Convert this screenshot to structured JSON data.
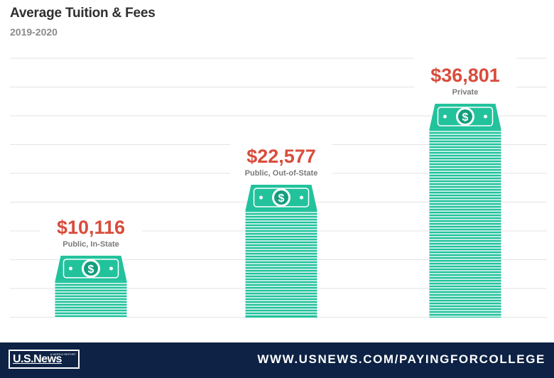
{
  "header": {
    "title": "Average Tuition & Fees",
    "subtitle": "2019-2020"
  },
  "chart_data": {
    "type": "bar",
    "title": "Average Tuition & Fees",
    "subtitle": "2019-2020",
    "categories": [
      "Public, In-State",
      "Public, Out-of-State",
      "Private"
    ],
    "values": [
      10116,
      22577,
      36801
    ],
    "value_labels": [
      "$10,116",
      "$22,577",
      "$36,801"
    ],
    "xlabel": "",
    "ylabel": "",
    "ylim": [
      0,
      45000
    ],
    "grid": true,
    "legend": "none",
    "bar_style": "stacked dollar bills",
    "colors": {
      "bar": "#22c29c",
      "bar_dark": "#149e7d",
      "value_label": "#d94c3c",
      "category_label": "#7a7a7a",
      "grid": "#e3e3e3"
    }
  },
  "footer": {
    "logo_text": "U.S.News",
    "logo_tagline": "& WORLD REPORT",
    "url": "WWW.USNEWS.COM/PAYINGFORCOLLEGE",
    "background": "#0d2244"
  }
}
